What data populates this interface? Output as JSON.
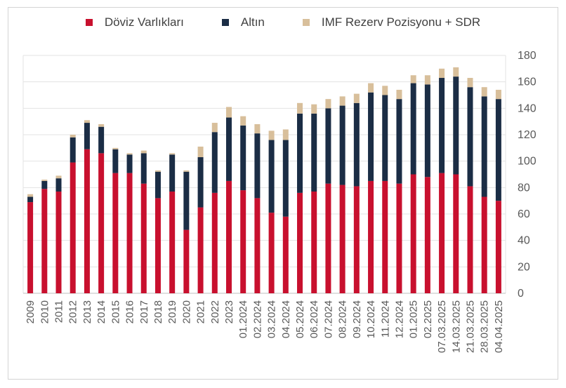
{
  "chart_data": {
    "type": "bar",
    "stacked": true,
    "categories": [
      "2009",
      "2010",
      "2011",
      "2012",
      "2013",
      "2014",
      "2015",
      "2016",
      "2017",
      "2018",
      "2019",
      "2020",
      "2021",
      "2022",
      "2023",
      "01.2024",
      "02.2024",
      "03.2024",
      "04.2024",
      "05.2024",
      "06.2024",
      "07.2024",
      "08.2024",
      "09.2024",
      "10.2024",
      "11.2024",
      "12.2024",
      "01.2025",
      "02.2025",
      "07.03.2025",
      "14.03.2025",
      "21.03.2025",
      "28.03.2025",
      "04.04.2025"
    ],
    "series": [
      {
        "name": "Döviz Varlıkları",
        "color": "#c8102e",
        "values": [
          69,
          79,
          77,
          99,
          109,
          106,
          91,
          91,
          83,
          72,
          77,
          48,
          65,
          76,
          85,
          78,
          72,
          61,
          58,
          76,
          77,
          83,
          82,
          81,
          85,
          85,
          83,
          90,
          88,
          91,
          90,
          81,
          73,
          70
        ]
      },
      {
        "name": "Altın",
        "color": "#1b2d45",
        "values": [
          4,
          6,
          10,
          19,
          20,
          20,
          18,
          14,
          23,
          20,
          28,
          44,
          38,
          46,
          48,
          49,
          49,
          55,
          58,
          60,
          59,
          57,
          60,
          63,
          67,
          65,
          64,
          69,
          70,
          72,
          74,
          75,
          76,
          77
        ]
      },
      {
        "name": "IMF Rezerv Pozisyonu + SDR",
        "color": "#d8bf9b",
        "values": [
          2,
          1,
          2,
          2,
          2,
          2,
          1,
          1,
          2,
          1,
          1,
          1,
          8,
          7,
          8,
          7,
          7,
          7,
          8,
          8,
          7,
          7,
          7,
          7,
          7,
          7,
          7,
          6,
          7,
          7,
          7,
          7,
          7,
          7
        ]
      }
    ],
    "yaxis": {
      "min": 0,
      "max": 180,
      "ticks": [
        0,
        20,
        40,
        60,
        80,
        100,
        120,
        140,
        160,
        180
      ],
      "position": "right"
    },
    "grid": true,
    "legend_position": "top-center"
  }
}
